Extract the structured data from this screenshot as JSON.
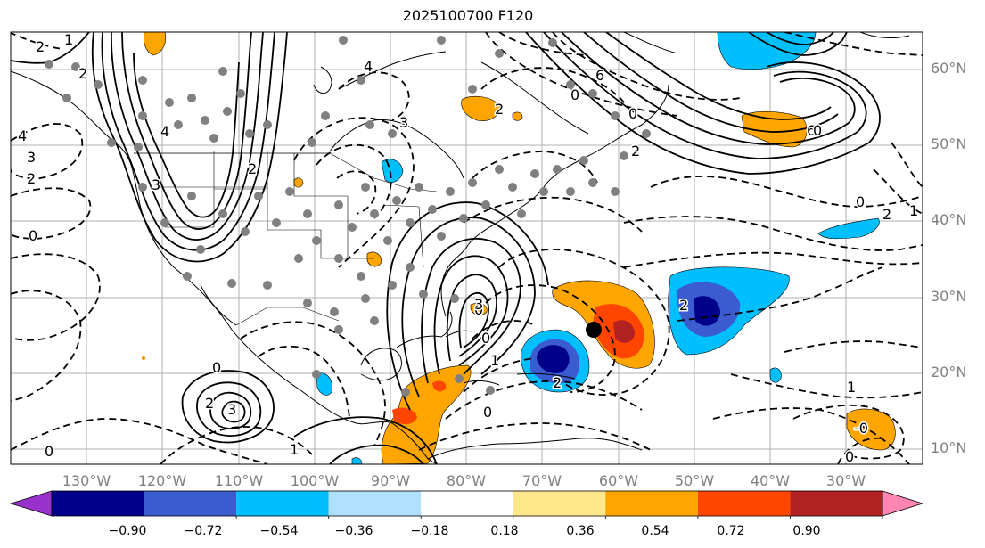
{
  "title": "2025100700 F120",
  "lat_labels": [
    "60°N",
    "50°N",
    "40°N",
    "30°N",
    "20°N",
    "10°N"
  ],
  "lon_labels": [
    "130°W",
    "120°W",
    "110°W",
    "100°W",
    "90°W",
    "80°W",
    "70°W",
    "60°W",
    "50°W",
    "40°W",
    "30°W"
  ],
  "colorbar": {
    "ticks": [
      "−0.90",
      "−0.72",
      "−0.54",
      "−0.36",
      "−0.18",
      "0.18",
      "0.36",
      "0.54",
      "0.72",
      "0.90"
    ],
    "colors": [
      "#9932cc",
      "#00008b",
      "#3a5ccf",
      "#00bfff",
      "#b0e0ff",
      "#ffffff",
      "#ffe88c",
      "#ffa500",
      "#ff4500",
      "#b22222",
      "#ff86b3"
    ]
  },
  "contour_labels": [
    "2",
    "1",
    "2",
    "4",
    "3",
    "2",
    "0",
    "4",
    "3",
    "2",
    "3",
    "4",
    "2",
    "0",
    "6",
    "0",
    "2",
    "0",
    "3",
    "0",
    "1",
    "3",
    "2",
    "1",
    "2",
    "0",
    "0",
    "2",
    "1",
    "0",
    "6",
    "0",
    "1",
    "2",
    "0",
    "0",
    "-0"
  ],
  "colors": {
    "land_outline": "#000000",
    "grid": "#b0b0b0",
    "station_dot": "#808080",
    "center_dot": "#000000"
  }
}
